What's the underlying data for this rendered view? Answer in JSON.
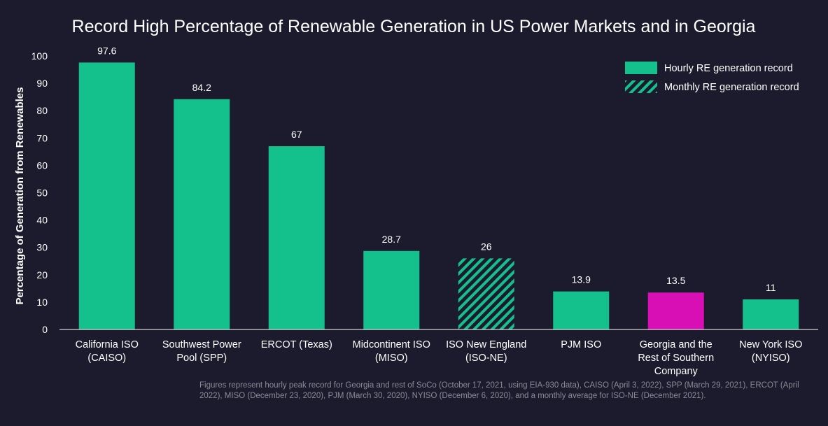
{
  "chart_data": {
    "type": "bar",
    "title": "Record High Percentage of Renewable Generation in US Power Markets and in Georgia",
    "ylabel": "Percentage of Generation from Renewables",
    "xlabel": "",
    "ylim": [
      0,
      100
    ],
    "yticks": [
      "0",
      "10",
      "20",
      "30",
      "40",
      "50",
      "60",
      "70",
      "80",
      "90",
      "100"
    ],
    "categories": [
      [
        "California ISO",
        "(CAISO)"
      ],
      [
        "Southwest Power",
        "Pool (SPP)"
      ],
      [
        "ERCOT (Texas)"
      ],
      [
        "Midcontinent ISO",
        "(MISO)"
      ],
      [
        "ISO New England",
        "(ISO-NE)"
      ],
      [
        "PJM ISO"
      ],
      [
        "Georgia and the",
        "Rest of Southern",
        "Company"
      ],
      [
        "New York ISO",
        "(NYISO)"
      ]
    ],
    "values": [
      97.6,
      84.2,
      67,
      28.7,
      26,
      13.9,
      13.5,
      11
    ],
    "value_labels": [
      "97.6",
      "84.2",
      "67",
      "28.7",
      "26",
      "13.9",
      "13.5",
      "11"
    ],
    "bar_kinds": [
      "hourly",
      "hourly",
      "hourly",
      "hourly",
      "monthly",
      "hourly",
      "georgia",
      "hourly"
    ],
    "legend": {
      "placement": "top-right",
      "entries": [
        {
          "label": "Hourly RE generation record",
          "kind": "hourly"
        },
        {
          "label": "Monthly RE generation record",
          "kind": "monthly"
        }
      ]
    },
    "grid": false,
    "colors": {
      "background": "#1c1b2e",
      "hourly": "#14c08c",
      "georgia": "#d80fb4",
      "text": "#ffffff",
      "axis": "#ffffff",
      "footnote": "#8a8a96"
    }
  },
  "footnote": "Figures represent hourly peak record for Georgia and rest of SoCo (October 17, 2021, using EIA-930 data), CAISO (April 3, 2022), SPP (March 29, 2021), ERCOT (April 2022), MISO (December 23, 2020), PJM (March 30, 2020), NYISO (December 6, 2020), and a monthly average for ISO-NE (December 2021)."
}
